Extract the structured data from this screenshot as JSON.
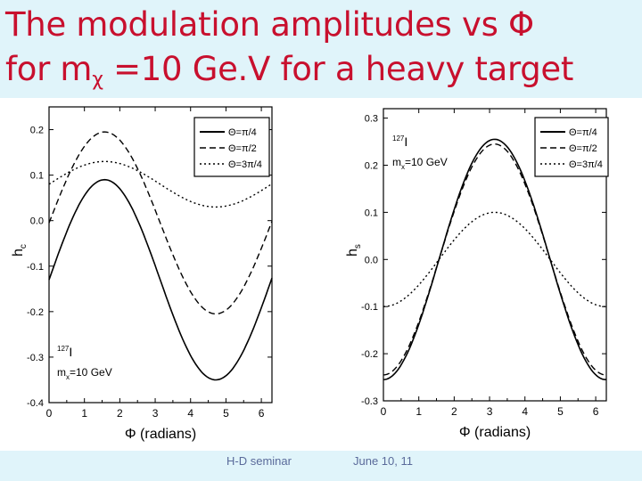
{
  "title": {
    "line1": "The modulation amplitudes  vs Φ",
    "line2_pre": "for  m",
    "line2_sub": "χ",
    "line2_post": " =10 Ge.V for a heavy target"
  },
  "footer": {
    "left": "H-D seminar",
    "right": "June 10, 11"
  },
  "colors": {
    "band": "#e0f4fa",
    "title": "#c8102e"
  },
  "chart_data": [
    {
      "type": "line",
      "xlabel": "Φ (radians)",
      "ylabel_main": "h",
      "ylabel_sub": "c",
      "xlim": [
        0,
        6.3
      ],
      "ylim": [
        -0.4,
        0.25
      ],
      "xticks": [
        0,
        1,
        2,
        3,
        4,
        5,
        6
      ],
      "yticks": [
        0.2,
        0.1,
        0.0,
        -0.1,
        -0.2,
        -0.3,
        -0.4
      ],
      "ytick_labels": [
        "0.2",
        "0.1",
        "0.0",
        "-0.1",
        "-0.2",
        "-0.3",
        "-0.4"
      ],
      "annotation": {
        "isotope_mass": "127",
        "isotope": "I",
        "mass_pre": "m",
        "mass_sub": "x",
        "mass_post": "=10 GeV"
      },
      "series": [
        {
          "name": "Θ=π/4",
          "style": "solid",
          "offset": -0.13,
          "amplitude": 0.22,
          "phase": "sin"
        },
        {
          "name": "Θ=π/2",
          "style": "dashed",
          "offset": -0.005,
          "amplitude": 0.2,
          "phase": "sin"
        },
        {
          "name": "Θ=3π/4",
          "style": "dotted",
          "offset": 0.08,
          "amplitude": 0.05,
          "phase": "sin"
        }
      ]
    },
    {
      "type": "line",
      "xlabel": "Φ (radians)",
      "ylabel_main": "h",
      "ylabel_sub": "s",
      "xlim": [
        0,
        6.3
      ],
      "ylim": [
        -0.3,
        0.32
      ],
      "xticks": [
        0,
        1,
        2,
        3,
        4,
        5,
        6
      ],
      "yticks": [
        0.3,
        0.2,
        0.1,
        0.0,
        -0.1,
        -0.2,
        -0.3
      ],
      "ytick_labels": [
        "0.3",
        "0.2",
        "0.1",
        "0.0",
        "-0.1",
        "-0.2",
        "-0.3"
      ],
      "annotation": {
        "isotope_mass": "127",
        "isotope": "I",
        "mass_pre": "m",
        "mass_sub": "x",
        "mass_post": "=10 GeV"
      },
      "series": [
        {
          "name": "Θ=π/4",
          "style": "solid",
          "offset": 0.0,
          "amplitude": 0.255,
          "phase": "negcos"
        },
        {
          "name": "Θ=π/2",
          "style": "dashed",
          "offset": 0.0,
          "amplitude": 0.245,
          "phase": "negcos"
        },
        {
          "name": "Θ=3π/4",
          "style": "dotted",
          "offset": 0.0,
          "amplitude": 0.1,
          "phase": "negcos"
        }
      ]
    }
  ]
}
